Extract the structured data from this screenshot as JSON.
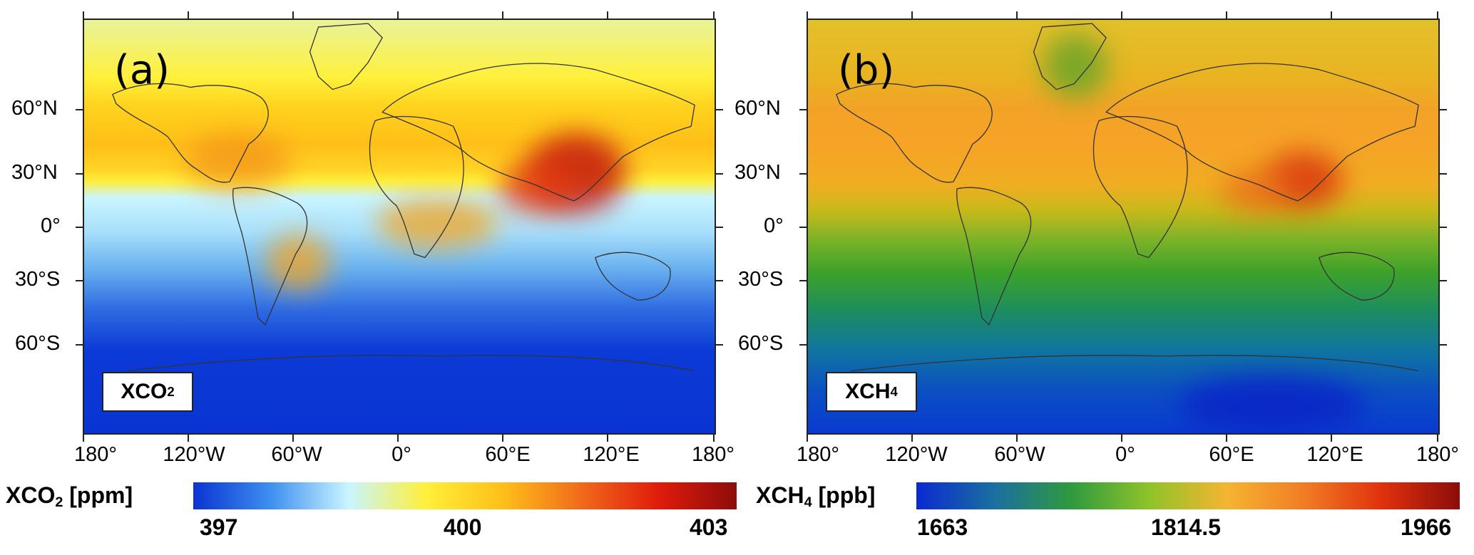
{
  "panels": [
    {
      "letter": "(a)",
      "gas_main": "XCO",
      "gas_sub": "2",
      "colorbar": {
        "label_main": "XCO",
        "label_sub": "2",
        "label_unit": " [ppm]",
        "ticks": [
          "397",
          "400",
          "403"
        ],
        "colors": [
          "#0a34d2",
          "#3f8ff0",
          "#c9f5ff",
          "#fff03a",
          "#ffbe1a",
          "#f06a1a",
          "#e01b0c",
          "#8c0d0a"
        ]
      }
    },
    {
      "letter": "(b)",
      "gas_main": "XCH",
      "gas_sub": "4",
      "colorbar": {
        "label_main": "XCH",
        "label_sub": "4",
        "label_unit": " [ppb]",
        "ticks": [
          "1663",
          "1814.5",
          "1966"
        ],
        "colors": [
          "#0a2ad0",
          "#1a6fa0",
          "#2f9a3e",
          "#8fc329",
          "#f4b531",
          "#f17c24",
          "#e0310e",
          "#8c0d0a"
        ]
      }
    }
  ],
  "lat_labels": [
    "60°N",
    "30°N",
    "0°",
    "30°S",
    "60°S"
  ],
  "lon_labels": [
    "180°",
    "120°W",
    "60°W",
    "0°",
    "60°E",
    "120°E",
    "180°"
  ]
}
